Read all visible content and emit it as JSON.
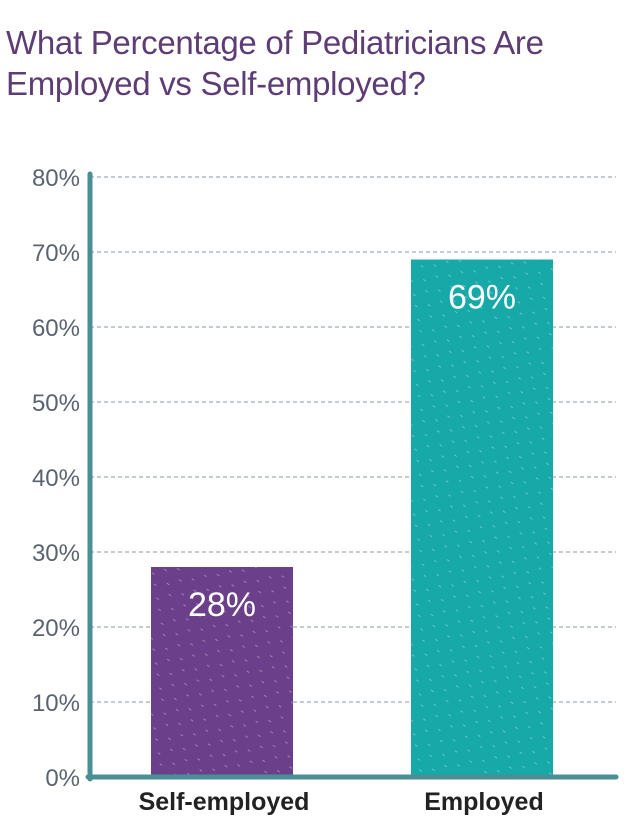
{
  "chart_data": {
    "type": "bar",
    "title_lines": [
      "What Percentage of Pediatricians Are",
      "Employed vs Self-employed?"
    ],
    "categories": [
      "Self-employed",
      "Employed"
    ],
    "values": [
      28,
      69
    ],
    "data_labels": [
      "28%",
      "69%"
    ],
    "colors": [
      "#6b3f8a",
      "#17a8a8"
    ],
    "ylim": [
      0,
      80
    ],
    "yticks": [
      0,
      10,
      20,
      30,
      40,
      50,
      60,
      70,
      80
    ],
    "ytick_labels": [
      "0%",
      "10%",
      "20%",
      "30%",
      "40%",
      "50%",
      "60%",
      "70%",
      "80%"
    ],
    "grid": true,
    "grid_style": "dashed",
    "axis_color": "#4a8f96",
    "title_color": "#5e3d76"
  }
}
